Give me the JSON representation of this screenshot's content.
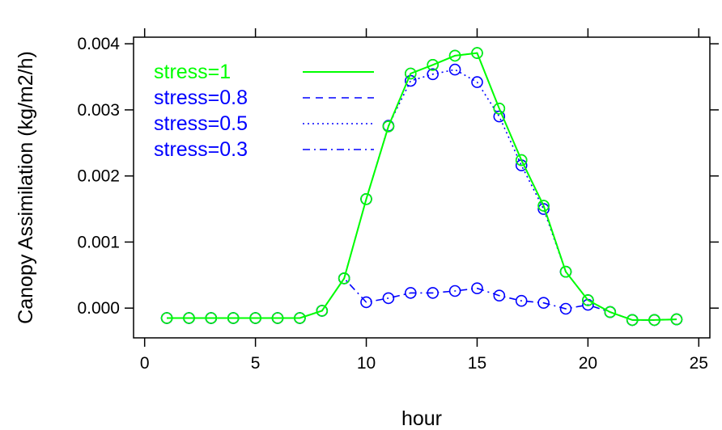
{
  "chart_data": {
    "type": "line",
    "title": "",
    "xlabel": "hour",
    "ylabel": "Canopy Assimilation (kg/m2/h)",
    "xlim": [
      -0.5,
      25.5
    ],
    "ylim": [
      -0.00045,
      0.0041
    ],
    "x_ticks": [
      0,
      5,
      10,
      15,
      20,
      25
    ],
    "x_tick_labels": [
      "0",
      "5",
      "10",
      "15",
      "20",
      "25"
    ],
    "y_ticks": [
      0.0,
      0.001,
      0.002,
      0.003,
      0.004
    ],
    "y_tick_labels": [
      "0.000",
      "0.001",
      "0.002",
      "0.003",
      "0.004"
    ],
    "grid": false,
    "legend_position": "top-left",
    "x": [
      1,
      2,
      3,
      4,
      5,
      6,
      7,
      8,
      9,
      10,
      11,
      12,
      13,
      14,
      15,
      16,
      17,
      18,
      19,
      20,
      21,
      22,
      23,
      24
    ],
    "series": [
      {
        "name": "stress=1",
        "color": "#00ff00",
        "line_style": "solid",
        "marker": "open-circle",
        "values": [
          -0.00015,
          -0.00015,
          -0.00015,
          -0.00015,
          -0.00015,
          -0.00015,
          -0.00015,
          -4e-05,
          0.00045,
          0.00165,
          0.00275,
          0.00355,
          0.00368,
          0.00382,
          0.00386,
          0.00302,
          0.00224,
          0.00155,
          0.00055,
          0.00012,
          -6e-05,
          -0.00018,
          -0.00018,
          -0.00017
        ]
      },
      {
        "name": "stress=0.8",
        "color": "#0000ff",
        "line_style": "dashed",
        "marker": "open-circle",
        "values": [
          -0.00015,
          -0.00015,
          -0.00015,
          -0.00015,
          -0.00015,
          -0.00015,
          -0.00015,
          -4e-05,
          0.00045,
          0.00165,
          0.00275,
          0.00355,
          0.00368,
          0.00382,
          0.00386,
          0.00302,
          0.00224,
          0.00155,
          0.00055,
          0.00012,
          -6e-05,
          -0.00018,
          -0.00018,
          -0.00017
        ]
      },
      {
        "name": "stress=0.5",
        "color": "#0000ff",
        "line_style": "dotted",
        "marker": "open-circle",
        "values": [
          -0.00015,
          -0.00015,
          -0.00015,
          -0.00015,
          -0.00015,
          -0.00015,
          -0.00015,
          -4e-05,
          0.00045,
          0.00165,
          0.00276,
          0.00344,
          0.00354,
          0.00361,
          0.00342,
          0.0029,
          0.00216,
          0.0015,
          0.00055,
          0.00012,
          -6e-05,
          -0.00018,
          -0.00018,
          -0.00017
        ]
      },
      {
        "name": "stress=0.3",
        "color": "#0000ff",
        "line_style": "dashdot",
        "marker": "open-circle",
        "values": [
          -0.00015,
          -0.00015,
          -0.00015,
          -0.00015,
          -0.00015,
          -0.00015,
          -0.00015,
          -4e-05,
          0.00045,
          9e-05,
          0.00015,
          0.00023,
          0.00023,
          0.00026,
          0.0003,
          0.00019,
          0.00011,
          8e-05,
          -1e-05,
          5e-05,
          -6e-05,
          -0.00018,
          -0.00018,
          -0.00017
        ]
      }
    ]
  }
}
